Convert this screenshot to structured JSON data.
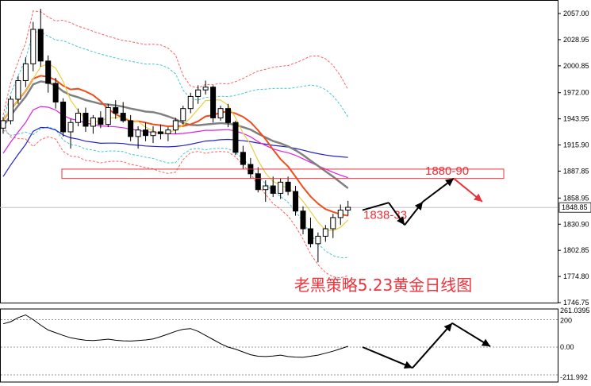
{
  "chart_data": {
    "type": "candlestick",
    "title": "老黑策略5.23黄金日线图",
    "price_axis": {
      "ticks": [
        "2057.00",
        "2028.95",
        "2000.85",
        "1972.00",
        "1943.95",
        "1915.90",
        "1887.85",
        "1858.95",
        "1830.90",
        "1802.85",
        "1774.80",
        "1746.75"
      ],
      "values": [
        2057.0,
        2028.95,
        2000.85,
        1972.0,
        1943.95,
        1915.9,
        1887.85,
        1858.95,
        1830.9,
        1802.85,
        1774.8,
        1746.75
      ],
      "current_price": "1848.85",
      "current_value": 1848.85,
      "ylim": [
        1746.75,
        2057.0
      ]
    },
    "indicator_axis": {
      "ticks": [
        "261.0395",
        "200",
        "0.00",
        "-211.992"
      ],
      "values": [
        261.0395,
        200,
        0,
        -211.992
      ]
    },
    "annotations": {
      "resistance_label": "1880-90",
      "resistance_zone": [
        1880,
        1890
      ],
      "support_label": "1838-33",
      "support_value": 1835
    },
    "candles": [
      [
        1934,
        1946,
        1928,
        1942
      ],
      [
        1942,
        1968,
        1938,
        1965
      ],
      [
        1965,
        1990,
        1960,
        1985
      ],
      [
        1985,
        2010,
        1978,
        2003
      ],
      [
        2003,
        2048,
        1995,
        2040
      ],
      [
        2040,
        2062,
        2000,
        2006
      ],
      [
        2006,
        2012,
        1972,
        1982
      ],
      [
        1982,
        1988,
        1955,
        1962
      ],
      [
        1962,
        1966,
        1925,
        1930
      ],
      [
        1930,
        1944,
        1912,
        1940
      ],
      [
        1940,
        1955,
        1936,
        1950
      ],
      [
        1950,
        1956,
        1930,
        1936
      ],
      [
        1936,
        1948,
        1928,
        1945
      ],
      [
        1945,
        1952,
        1934,
        1938
      ],
      [
        1938,
        1960,
        1935,
        1956
      ],
      [
        1956,
        1964,
        1944,
        1950
      ],
      [
        1950,
        1962,
        1940,
        1942
      ],
      [
        1942,
        1948,
        1920,
        1925
      ],
      [
        1925,
        1936,
        1912,
        1932
      ],
      [
        1932,
        1940,
        1920,
        1926
      ],
      [
        1926,
        1936,
        1918,
        1930
      ],
      [
        1930,
        1938,
        1922,
        1928
      ],
      [
        1928,
        1935,
        1920,
        1932
      ],
      [
        1932,
        1945,
        1928,
        1942
      ],
      [
        1942,
        1958,
        1938,
        1955
      ],
      [
        1955,
        1972,
        1950,
        1968
      ],
      [
        1968,
        1980,
        1960,
        1975
      ],
      [
        1975,
        1985,
        1970,
        1978
      ],
      [
        1978,
        1980,
        1940,
        1945
      ],
      [
        1945,
        1958,
        1942,
        1955
      ],
      [
        1955,
        1960,
        1935,
        1940
      ],
      [
        1940,
        1942,
        1905,
        1908
      ],
      [
        1908,
        1915,
        1890,
        1895
      ],
      [
        1895,
        1902,
        1880,
        1885
      ],
      [
        1885,
        1892,
        1865,
        1868
      ],
      [
        1868,
        1878,
        1855,
        1872
      ],
      [
        1872,
        1882,
        1860,
        1864
      ],
      [
        1864,
        1880,
        1858,
        1876
      ],
      [
        1876,
        1882,
        1862,
        1866
      ],
      [
        1866,
        1872,
        1840,
        1845
      ],
      [
        1845,
        1850,
        1820,
        1826
      ],
      [
        1826,
        1838,
        1806,
        1810
      ],
      [
        1810,
        1822,
        1790,
        1818
      ],
      [
        1818,
        1830,
        1812,
        1826
      ],
      [
        1826,
        1842,
        1816,
        1838
      ],
      [
        1838,
        1852,
        1830,
        1846
      ],
      [
        1846,
        1856,
        1840,
        1849
      ]
    ],
    "series": [],
    "indicator_values": [
      170,
      185,
      215,
      235,
      200,
      160,
      125,
      105,
      85,
      68,
      58,
      50,
      48,
      52,
      58,
      50,
      46,
      44,
      48,
      52,
      60,
      76,
      95,
      115,
      130,
      135,
      115,
      85,
      55,
      25,
      0,
      -15,
      -35,
      -55,
      -66,
      -68,
      -64,
      -58,
      -68,
      -72,
      -74,
      -66,
      -58,
      -44,
      -30,
      -12,
      6
    ],
    "forecast_arrows": {
      "price": [
        [
          1846,
          1854
        ],
        [
          1854,
          1830
        ],
        [
          1830,
          1855
        ],
        [
          1855,
          1880
        ],
        [
          1880,
          1855
        ]
      ],
      "indicator": [
        0,
        -150,
        175,
        5
      ]
    },
    "colors": {
      "bull": "#ffffff",
      "bear": "#000000",
      "candle_outline": "#000000",
      "ma_red": "#f04e1b",
      "ma_gray": "#808080",
      "ma_magenta": "#e020e0",
      "ma_blue": "#2222cc",
      "ma_yellow": "#e8d040",
      "bands_red": "#ff6060",
      "bands_cyan": "#40c8d0",
      "arrow_black": "#000000",
      "arrow_red": "#e8333a",
      "annotation": "#e8333a"
    },
    "grid": false
  }
}
